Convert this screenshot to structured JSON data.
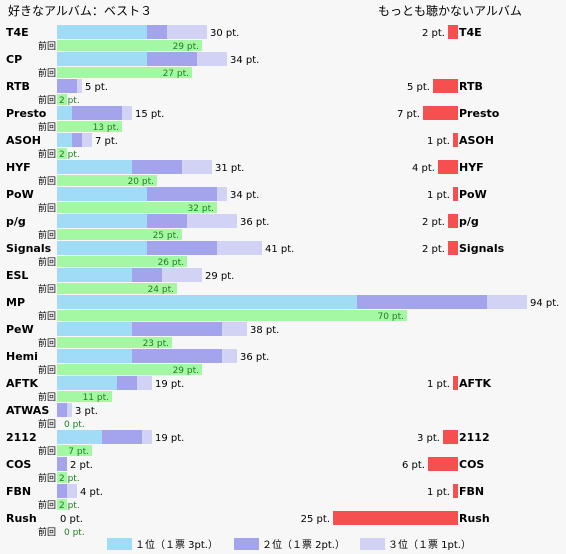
{
  "left_title": "好きなアルバム：ベスト３",
  "right_title": "もっとも聴かないアルバム",
  "prev_label": "前回",
  "pt_suffix": " pt.",
  "legend": [
    {
      "label": "１位（１票 3pt.）",
      "color": "#a0dcf5"
    },
    {
      "label": "２位（１票 2pt.）",
      "color": "#a4a4ec"
    },
    {
      "label": "３位（１票 1pt.）",
      "color": "#d2d2f5"
    }
  ],
  "colors": {
    "first": "#a0dcf5",
    "second": "#a4a4ec",
    "third": "#d2d2f5",
    "previous": "#a4f8a4",
    "previous_text": "#208020",
    "least": "#f64f4f"
  },
  "chart_data": {
    "type": "bar",
    "categories": [
      "T4E",
      "CP",
      "RTB",
      "Presto",
      "ASOH",
      "HYF",
      "PoW",
      "p/g",
      "Signals",
      "ESL",
      "MP",
      "PeW",
      "Hemi",
      "AFTK",
      "ATWAS",
      "2112",
      "COS",
      "FBN",
      "Rush"
    ],
    "series": [
      {
        "name": "１位（１票 3pt.）",
        "values": [
          18,
          18,
          0,
          3,
          3,
          15,
          18,
          18,
          18,
          15,
          60,
          15,
          15,
          12,
          0,
          9,
          0,
          0,
          0
        ]
      },
      {
        "name": "２位（１票 2pt.）",
        "values": [
          4,
          10,
          4,
          10,
          2,
          10,
          14,
          8,
          14,
          6,
          26,
          18,
          18,
          4,
          2,
          8,
          2,
          2,
          0
        ]
      },
      {
        "name": "３位（１票 1pt.）",
        "values": [
          8,
          6,
          1,
          2,
          2,
          6,
          2,
          10,
          9,
          8,
          8,
          5,
          3,
          3,
          1,
          2,
          0,
          2,
          0
        ]
      }
    ],
    "totals": [
      30,
      34,
      5,
      15,
      7,
      31,
      34,
      36,
      41,
      29,
      94,
      38,
      36,
      19,
      3,
      19,
      2,
      4,
      0
    ],
    "previous": [
      29,
      27,
      2,
      13,
      2,
      20,
      32,
      25,
      26,
      24,
      70,
      23,
      29,
      11,
      0,
      7,
      2,
      2,
      0
    ],
    "least_listened": [
      {
        "name": "T4E",
        "value": 2
      },
      {
        "name": "RTB",
        "value": 5
      },
      {
        "name": "Presto",
        "value": 7
      },
      {
        "name": "ASOH",
        "value": 1
      },
      {
        "name": "HYF",
        "value": 4
      },
      {
        "name": "PoW",
        "value": 1
      },
      {
        "name": "p/g",
        "value": 2
      },
      {
        "name": "Signals",
        "value": 2
      },
      {
        "name": "AFTK",
        "value": 1
      },
      {
        "name": "2112",
        "value": 3
      },
      {
        "name": "COS",
        "value": 6
      },
      {
        "name": "FBN",
        "value": 1
      },
      {
        "name": "Rush",
        "value": 25
      }
    ]
  }
}
